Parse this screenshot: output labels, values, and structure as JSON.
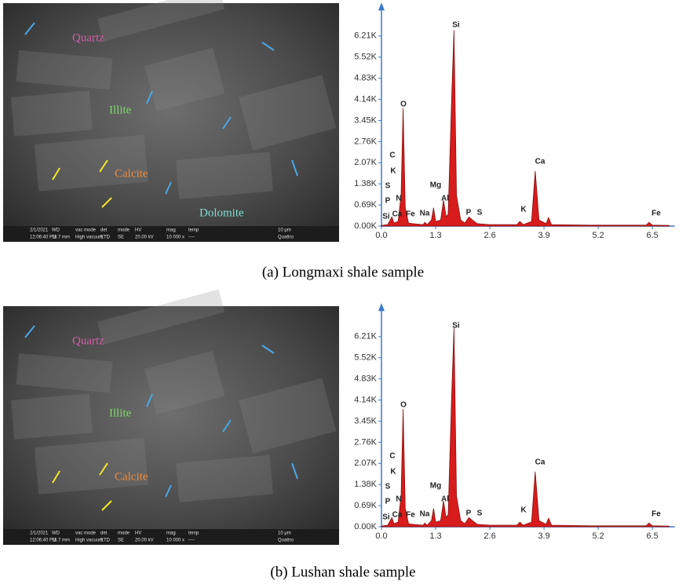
{
  "chart_data": [
    {
      "type": "area",
      "color": "#d81b1b",
      "x": [
        0.0,
        0.15,
        0.25,
        0.3,
        0.4,
        0.47,
        0.52,
        0.57,
        0.65,
        0.75,
        1.0,
        1.04,
        1.1,
        1.2,
        1.25,
        1.3,
        1.42,
        1.49,
        1.55,
        1.6,
        1.68,
        1.74,
        1.8,
        1.9,
        2.0,
        2.1,
        2.18,
        2.3,
        2.6,
        3.25,
        3.32,
        3.4,
        3.6,
        3.69,
        3.78,
        3.95,
        4.01,
        4.08,
        5.0,
        6.35,
        6.42,
        6.5,
        6.9
      ],
      "values": [
        0.02,
        0.05,
        0.3,
        0.1,
        0.15,
        1.0,
        3.85,
        0.6,
        0.1,
        0.08,
        0.05,
        0.12,
        0.05,
        0.2,
        0.6,
        0.15,
        0.2,
        0.85,
        0.3,
        0.4,
        4.0,
        6.4,
        1.0,
        0.2,
        0.1,
        0.3,
        0.2,
        0.08,
        0.05,
        0.05,
        0.15,
        0.05,
        0.15,
        1.8,
        0.2,
        0.08,
        0.28,
        0.05,
        0.03,
        0.03,
        0.12,
        0.03,
        0.02
      ],
      "xlim": [
        0,
        7.0
      ],
      "ylim": [
        0,
        7.2
      ],
      "xticks": [
        {
          "value": 0,
          "label": "0.0"
        },
        1.3,
        2.6,
        3.9,
        5.2,
        6.5
      ],
      "yticks": [
        {
          "value": 0,
          "label": "0.00K"
        },
        {
          "value": 0.69,
          "label": "0.69K"
        },
        {
          "value": 1.38,
          "label": "1.38K"
        },
        {
          "value": 2.07,
          "label": "2.07K"
        },
        {
          "value": 2.76,
          "label": "2.76K"
        },
        {
          "value": 3.45,
          "label": "3.45K"
        },
        {
          "value": 4.14,
          "label": "4.14K"
        },
        {
          "value": 4.83,
          "label": "4.83K"
        },
        {
          "value": 5.52,
          "label": "5.52K"
        },
        {
          "value": 6.21,
          "label": "6.21K"
        }
      ],
      "annotations": [
        "Si",
        "O",
        "C",
        "K",
        "S",
        "P",
        "N",
        "Si",
        "Ca",
        "Fe",
        "Na",
        "Mg",
        "Al",
        "P",
        "S",
        "K",
        "Ca",
        "Fe"
      ]
    },
    {
      "type": "area",
      "color": "#d81b1b",
      "x": [
        0.0,
        0.15,
        0.25,
        0.3,
        0.4,
        0.47,
        0.52,
        0.57,
        0.65,
        0.75,
        1.0,
        1.04,
        1.1,
        1.2,
        1.25,
        1.3,
        1.42,
        1.49,
        1.55,
        1.6,
        1.68,
        1.74,
        1.8,
        1.9,
        2.0,
        2.1,
        2.18,
        2.3,
        2.6,
        3.25,
        3.32,
        3.4,
        3.6,
        3.69,
        3.78,
        3.95,
        4.01,
        4.08,
        5.0,
        6.35,
        6.42,
        6.5,
        6.9
      ],
      "values": [
        0.02,
        0.05,
        0.3,
        0.1,
        0.15,
        1.0,
        3.85,
        0.6,
        0.1,
        0.08,
        0.05,
        0.12,
        0.05,
        0.2,
        0.6,
        0.15,
        0.2,
        0.85,
        0.3,
        0.4,
        4.1,
        6.5,
        1.0,
        0.2,
        0.1,
        0.3,
        0.2,
        0.08,
        0.05,
        0.05,
        0.15,
        0.05,
        0.15,
        1.8,
        0.2,
        0.08,
        0.28,
        0.05,
        0.03,
        0.03,
        0.12,
        0.03,
        0.02
      ],
      "xlim": [
        0,
        7.0
      ],
      "ylim": [
        0,
        7.2
      ],
      "xticks": [
        {
          "value": 0,
          "label": "0.0"
        },
        1.3,
        2.6,
        3.9,
        5.2,
        6.5
      ],
      "yticks": [
        {
          "value": 0,
          "label": "0.00K"
        },
        {
          "value": 0.69,
          "label": "0.69K"
        },
        {
          "value": 1.38,
          "label": "1.38K"
        },
        {
          "value": 2.07,
          "label": "2.07K"
        },
        {
          "value": 2.76,
          "label": "2.76K"
        },
        {
          "value": 3.45,
          "label": "3.45K"
        },
        {
          "value": 4.14,
          "label": "4.14K"
        },
        {
          "value": 4.83,
          "label": "4.83K"
        },
        {
          "value": 5.52,
          "label": "5.52K"
        },
        {
          "value": 6.21,
          "label": "6.21K"
        }
      ],
      "annotations": [
        "Si",
        "O",
        "C",
        "K",
        "S",
        "P",
        "N",
        "Si",
        "Ca",
        "Fe",
        "Na",
        "Mg",
        "Al",
        "P",
        "S",
        "K",
        "Ca",
        "Fe"
      ]
    }
  ],
  "images": [
    {
      "minerals": [
        "Quartz",
        "Illite",
        "Calcite",
        "Dolomite"
      ],
      "info_bar": [
        "2/1/2021",
        "12:06:40 PM",
        "WD",
        "11.7 mm",
        "vac mode",
        "High vacuum",
        "det",
        "ETD",
        "mode",
        "SE",
        "HV",
        "20.00 kV",
        "mag",
        "10 000 x",
        "temp",
        "----",
        "10 μm",
        "Quattro"
      ]
    },
    {
      "minerals": [
        "Quartz",
        "Illite",
        "Calcite"
      ],
      "info_bar": [
        "2/1/2021",
        "12:06:40 PM",
        "WD",
        "11.7 mm",
        "vac mode",
        "High vacuum",
        "det",
        "ETD",
        "mode",
        "SE",
        "HV",
        "20.00 kV",
        "mag",
        "10 000 x",
        "temp",
        "----",
        "10 μm",
        "Quattro"
      ]
    }
  ],
  "captions": [
    "(a) Longmaxi shale sample",
    "(b) Lushan shale sample"
  ]
}
